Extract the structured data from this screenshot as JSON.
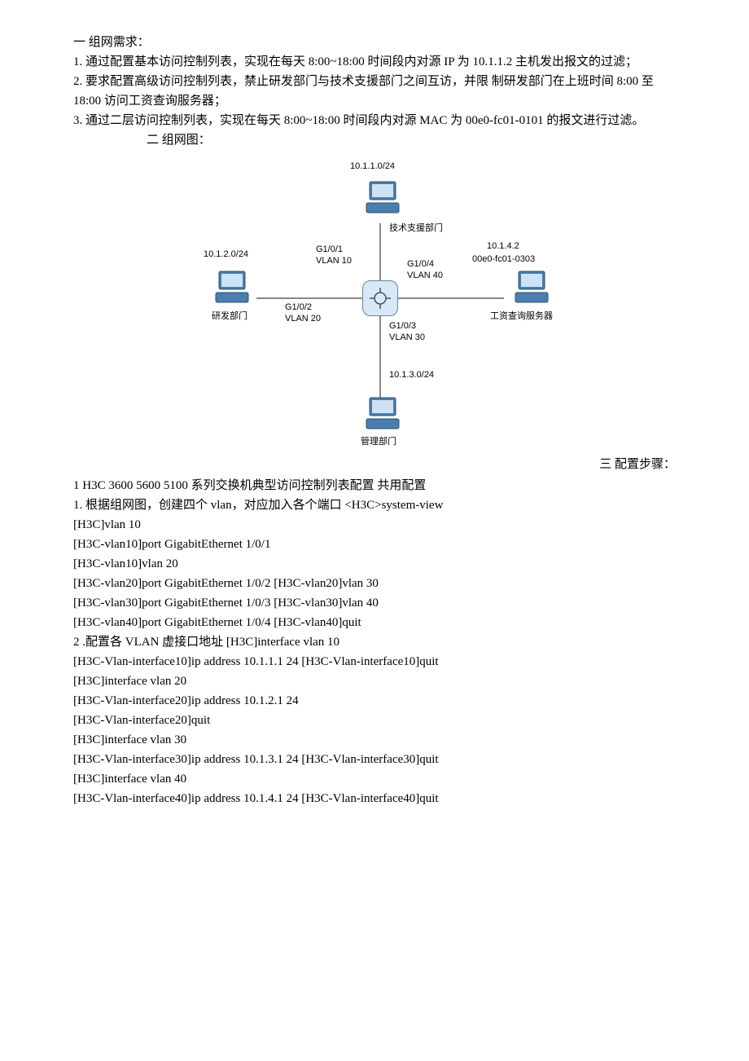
{
  "section1_title": "一 组网需求：",
  "req1": "1. 通过配置基本访问控制列表，实现在每天 8:00~18:00 时间段内对源 IP 为 10.1.1.2 主机发出报文的过滤；",
  "req2": "2. 要求配置高级访问控制列表，禁止研发部门与技术支援部门之间互访，并限 制研发部门在上班时间 8:00 至 18:00 访问工资查询服务器；",
  "req3": "3. 通过二层访问控制列表，实现在每天 8:00~18:00 时间段内对源 MAC 为 00e0-fc01-0101 的报文进行过滤。",
  "section2_title": "二 组网图：",
  "diagram": {
    "top_ip": "10.1.1.0/24",
    "top_name": "技术支援部门",
    "left_ip": "10.1.2.0/24",
    "left_name": "研发部门",
    "bottom_ip": "10.1.3.0/24",
    "bottom_name": "管理部门",
    "right_ip": "10.1.4.2",
    "right_mac": "00e0-fc01-0303",
    "right_name": "工资查询服务器",
    "port1": "G1/0/1",
    "vlan1": "VLAN 10",
    "port2": "G1/0/2",
    "vlan2": "VLAN 20",
    "port3": "G1/0/3",
    "vlan3": "VLAN 30",
    "port4": "G1/0/4",
    "vlan4": "VLAN 40"
  },
  "section3_title": "三 配置步骤：",
  "cfg_header": "1  H3C 3600 5600 5100 系列交换机典型访问控制列表配置 共用配置",
  "cfg_step1": "1.   根据组网图，创建四个 vlan，对应加入各个端口 <H3C>system-view",
  "cfg_lines": [
    "[H3C]vlan 10",
    "[H3C-vlan10]port GigabitEthernet 1/0/1",
    "[H3C-vlan10]vlan 20",
    "[H3C-vlan20]port GigabitEthernet 1/0/2 [H3C-vlan20]vlan 30",
    "[H3C-vlan30]port GigabitEthernet 1/0/3 [H3C-vlan30]vlan 40",
    "[H3C-vlan40]port GigabitEthernet 1/0/4 [H3C-vlan40]quit"
  ],
  "cfg_step2": "2 .配置各 VLAN 虚接口地址 [H3C]interface vlan 10",
  "cfg_lines2": [
    "[H3C-Vlan-interface10]ip address 10.1.1.1 24 [H3C-Vlan-interface10]quit",
    "[H3C]interface vlan 20",
    "[H3C-Vlan-interface20]ip address 10.1.2.1 24",
    "[H3C-Vlan-interface20]quit",
    "[H3C]interface vlan 30",
    "[H3C-Vlan-interface30]ip address 10.1.3.1 24 [H3C-Vlan-interface30]quit",
    "[H3C]interface vlan 40",
    "[H3C-Vlan-interface40]ip address 10.1.4.1 24 [H3C-Vlan-interface40]quit"
  ]
}
